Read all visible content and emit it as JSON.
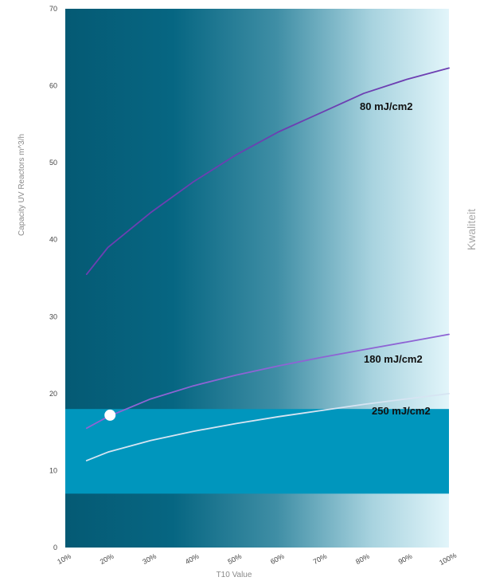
{
  "chart_data": {
    "type": "line",
    "title": "",
    "xlabel": "T10 Value",
    "ylabel": "Capacity UV Reactors  m^3/h",
    "side_label": "Kwaliteit",
    "x_ticks": [
      "10%",
      "20%",
      "30%",
      "40%",
      "50%",
      "60%",
      "70%",
      "80%",
      "90%",
      "100%"
    ],
    "y_ticks": [
      "0",
      "10",
      "20",
      "30",
      "40",
      "50",
      "60",
      "70"
    ],
    "xlim": [
      10,
      100
    ],
    "ylim": [
      0,
      70
    ],
    "grid": false,
    "background_gradient": [
      "#055a74",
      "#e2f5fa"
    ],
    "band": {
      "y_range": [
        7,
        18
      ],
      "color": "#0096bd"
    },
    "series": [
      {
        "name": "80 mJ/cm2",
        "color": "#6d3fb2",
        "x": [
          15,
          20,
          30,
          40,
          50,
          60,
          70,
          80,
          90,
          100
        ],
        "y": [
          35.5,
          39,
          43.5,
          47.5,
          51,
          54,
          56.5,
          59,
          60.8,
          62.3
        ]
      },
      {
        "name": "180 mJ/cm2",
        "color": "#8e64d4",
        "x": [
          15,
          20,
          30,
          40,
          50,
          60,
          70,
          80,
          90,
          100
        ],
        "y": [
          15.5,
          17,
          19.3,
          21,
          22.4,
          23.6,
          24.7,
          25.7,
          26.7,
          27.7
        ]
      },
      {
        "name": "250 mJ/cm2",
        "color": "#d6e4f2",
        "x": [
          15,
          20,
          30,
          40,
          50,
          60,
          70,
          80,
          90,
          100
        ],
        "y": [
          11.3,
          12.4,
          13.9,
          15.1,
          16.1,
          17,
          17.8,
          18.6,
          19.3,
          20
        ]
      }
    ],
    "marker": {
      "x": 20.5,
      "y": 17.2,
      "color": "#ffffff"
    }
  }
}
